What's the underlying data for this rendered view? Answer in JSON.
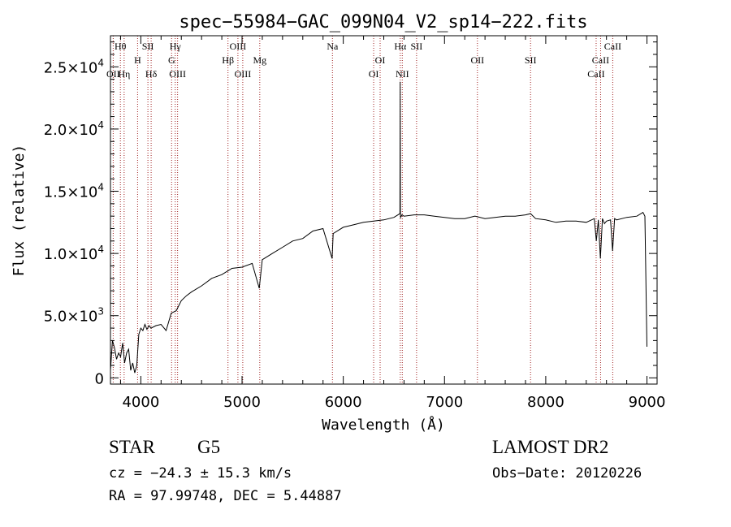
{
  "chart_data": {
    "type": "line",
    "title": "spec−55984−GAC_099N04_V2_sp14−222.fits",
    "xlabel": "Wavelength (Å)",
    "ylabel": "Flux (relative)",
    "xlim": [
      3700,
      9100
    ],
    "ylim": [
      -500,
      27500
    ],
    "x_ticks": [
      {
        "value": 4000,
        "label": "4000"
      },
      {
        "value": 5000,
        "label": "5000"
      },
      {
        "value": 6000,
        "label": "6000"
      },
      {
        "value": 7000,
        "label": "7000"
      },
      {
        "value": 8000,
        "label": "8000"
      },
      {
        "value": 9000,
        "label": "9000"
      }
    ],
    "y_ticks": [
      {
        "value": 0,
        "mant": "0",
        "exp": ""
      },
      {
        "value": 5000,
        "mant": "5.0×10",
        "exp": "3"
      },
      {
        "value": 10000,
        "mant": "1.0×10",
        "exp": "4"
      },
      {
        "value": 15000,
        "mant": "1.5×10",
        "exp": "4"
      },
      {
        "value": 20000,
        "mant": "2.0×10",
        "exp": "4"
      },
      {
        "value": 25000,
        "mant": "2.5×10",
        "exp": "4"
      }
    ],
    "series": [
      {
        "x": [
          3700,
          3720,
          3740,
          3760,
          3780,
          3800,
          3820,
          3840,
          3860,
          3880,
          3900,
          3920,
          3940,
          3960,
          3980,
          4000,
          4020,
          4040,
          4060,
          4080,
          4100,
          4150,
          4200,
          4250,
          4300,
          4350,
          4400,
          4450,
          4500,
          4600,
          4700,
          4800,
          4860,
          4900,
          5000,
          5100,
          5170,
          5200,
          5300,
          5400,
          5500,
          5600,
          5700,
          5800,
          5890,
          5900,
          6000,
          6100,
          6200,
          6300,
          6400,
          6500,
          6560,
          6562,
          6564,
          6566,
          6580,
          6600,
          6700,
          6800,
          6900,
          7000,
          7100,
          7200,
          7300,
          7400,
          7500,
          7600,
          7700,
          7800,
          7850,
          7900,
          8000,
          8100,
          8200,
          8300,
          8400,
          8480,
          8500,
          8520,
          8540,
          8560,
          8580,
          8600,
          8640,
          8660,
          8680,
          8700,
          8800,
          8900,
          8960,
          8980,
          9000
        ],
        "y": [
          600,
          3000,
          2400,
          1500,
          2000,
          1700,
          2800,
          1200,
          2000,
          2300,
          600,
          1200,
          400,
          1000,
          3500,
          4000,
          3800,
          4300,
          3900,
          4200,
          4000,
          4200,
          4300,
          3800,
          5200,
          5400,
          6200,
          6600,
          6900,
          7400,
          8000,
          8300,
          8600,
          8800,
          8900,
          9200,
          7200,
          9500,
          10000,
          10500,
          11000,
          11200,
          11800,
          12000,
          9600,
          11600,
          12100,
          12300,
          12500,
          12600,
          12700,
          12900,
          13200,
          23800,
          13400,
          12900,
          13100,
          13000,
          13100,
          13100,
          13000,
          12900,
          12800,
          12800,
          13000,
          12800,
          12900,
          13000,
          13000,
          13100,
          13200,
          12800,
          12700,
          12500,
          12600,
          12600,
          12500,
          12800,
          11000,
          12700,
          9600,
          12800,
          12400,
          12600,
          12700,
          10200,
          12800,
          12700,
          12900,
          13000,
          13300,
          13000,
          2500
        ]
      }
    ],
    "line_ids": [
      {
        "text": "Hθ",
        "x": 3798,
        "row": 1
      },
      {
        "text": "OII",
        "x": 3727,
        "row": 3
      },
      {
        "text": "Hη",
        "x": 3835,
        "row": 3
      },
      {
        "text": "H",
        "x": 3968,
        "row": 2
      },
      {
        "text": "SII",
        "x": 4070,
        "row": 1
      },
      {
        "text": "Hδ",
        "x": 4102,
        "row": 3
      },
      {
        "text": "Hγ",
        "x": 4340,
        "row": 1
      },
      {
        "text": "G",
        "x": 4304,
        "row": 2
      },
      {
        "text": "OIII",
        "x": 4363,
        "row": 3
      },
      {
        "text": "OIII",
        "x": 4959,
        "row": 1
      },
      {
        "text": "Hβ",
        "x": 4861,
        "row": 2
      },
      {
        "text": "OIII",
        "x": 5007,
        "row": 3
      },
      {
        "text": "Mg",
        "x": 5175,
        "row": 2
      },
      {
        "text": "Na",
        "x": 5893,
        "row": 1
      },
      {
        "text": "OI",
        "x": 6364,
        "row": 2
      },
      {
        "text": "OI",
        "x": 6300,
        "row": 3
      },
      {
        "text": "Hα",
        "x": 6563,
        "row": 1
      },
      {
        "text": "SII",
        "x": 6724,
        "row": 1
      },
      {
        "text": "NII",
        "x": 6583,
        "row": 3
      },
      {
        "text": "OII",
        "x": 7325,
        "row": 2
      },
      {
        "text": "SII",
        "x": 7850,
        "row": 2
      },
      {
        "text": "CaII",
        "x": 8662,
        "row": 1
      },
      {
        "text": "CaII",
        "x": 8542,
        "row": 2
      },
      {
        "text": "CaII",
        "x": 8498,
        "row": 3
      }
    ]
  },
  "info": {
    "object_class": "STAR",
    "subclass": "G5",
    "cz": "cz = −24.3 ± 15.3 km/s",
    "ra_dec": "RA =  97.99748, DEC =   5.44887",
    "survey": "LAMOST DR2",
    "obs_date": "Obs−Date: 20120226"
  },
  "colors": {
    "spectrum": "#000000",
    "line_markers": "#a02020",
    "background": "#ffffff"
  }
}
